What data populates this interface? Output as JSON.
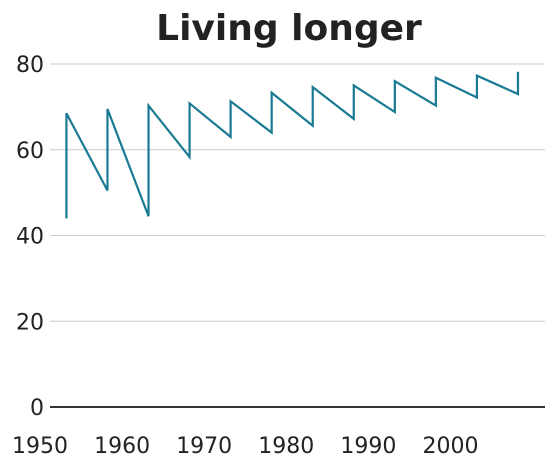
{
  "chart_data": {
    "type": "line",
    "title": "Living longer",
    "xlabel": "",
    "ylabel": "",
    "xlim": [
      1950,
      2010
    ],
    "ylim": [
      0,
      80
    ],
    "x_ticks": [
      1950,
      1960,
      1970,
      1980,
      1990,
      2000
    ],
    "y_ticks": [
      0,
      20,
      40,
      60,
      80
    ],
    "grid": true,
    "legend": "none",
    "colors": {
      "line": "#1a7a94",
      "grid": "#cccccc",
      "baseline": "#333333",
      "text": "#222222"
    },
    "series": [
      {
        "values": [
          {
            "x": 1952,
            "y": 44
          },
          {
            "x": 1952,
            "y": 68.5
          },
          {
            "x": 1957,
            "y": 50.5
          },
          {
            "x": 1957,
            "y": 69.5
          },
          {
            "x": 1962,
            "y": 44.5
          },
          {
            "x": 1962,
            "y": 70.3
          },
          {
            "x": 1967,
            "y": 58.3
          },
          {
            "x": 1967,
            "y": 70.8
          },
          {
            "x": 1972,
            "y": 63
          },
          {
            "x": 1972,
            "y": 71.3
          },
          {
            "x": 1977,
            "y": 64
          },
          {
            "x": 1977,
            "y": 73.3
          },
          {
            "x": 1982,
            "y": 65.6
          },
          {
            "x": 1982,
            "y": 74.6
          },
          {
            "x": 1987,
            "y": 67.2
          },
          {
            "x": 1987,
            "y": 75
          },
          {
            "x": 1992,
            "y": 68.8
          },
          {
            "x": 1992,
            "y": 76
          },
          {
            "x": 1997,
            "y": 70.3
          },
          {
            "x": 1997,
            "y": 76.8
          },
          {
            "x": 2002,
            "y": 72.2
          },
          {
            "x": 2002,
            "y": 77.3
          },
          {
            "x": 2007,
            "y": 73
          },
          {
            "x": 2007,
            "y": 78.2
          }
        ]
      }
    ]
  }
}
